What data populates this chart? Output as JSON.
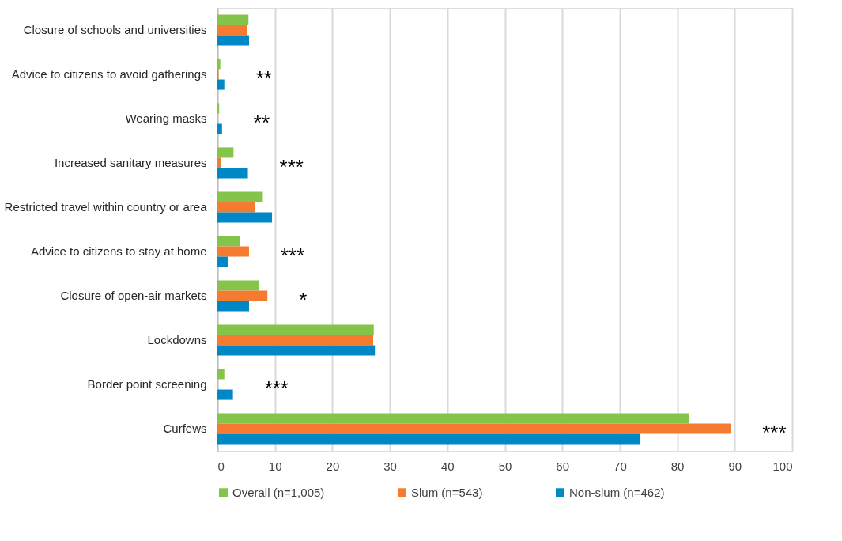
{
  "chart_data": {
    "type": "bar",
    "orientation": "horizontal",
    "categories": [
      "Closure of schools and universities",
      "Advice to citizens to avoid gatherings",
      "Wearing masks",
      "Increased sanitary measures",
      "Restricted travel within country or area",
      "Advice to citizens to stay at home",
      "Closure of open-air markets",
      "Lockdowns",
      "Border point screening",
      "Curfews"
    ],
    "series": [
      {
        "name": "Overall (n=1,005)",
        "color": "#84c44b",
        "values": [
          5.4,
          0.5,
          0.3,
          2.8,
          7.9,
          3.9,
          7.2,
          27.2,
          1.2,
          82.1
        ]
      },
      {
        "name": "Slum (n=543)",
        "color": "#f47b2f",
        "values": [
          5.1,
          0.2,
          0,
          0.6,
          6.5,
          5.5,
          8.7,
          27.1,
          0,
          89.3
        ],
        "value_labels": [
          null,
          "**",
          "**",
          "***",
          null,
          "***",
          "*",
          null,
          "***",
          "***"
        ]
      },
      {
        "name": "Non-slum (n=462)",
        "color": "#0087c5",
        "values": [
          5.5,
          1.2,
          0.8,
          5.3,
          9.5,
          1.8,
          5.5,
          27.4,
          2.7,
          73.6
        ]
      }
    ],
    "xlim": [
      0,
      100
    ],
    "xticks": [
      0,
      10,
      20,
      30,
      40,
      50,
      60,
      70,
      80,
      90,
      100
    ],
    "grid": "x",
    "legend": "bottom"
  }
}
